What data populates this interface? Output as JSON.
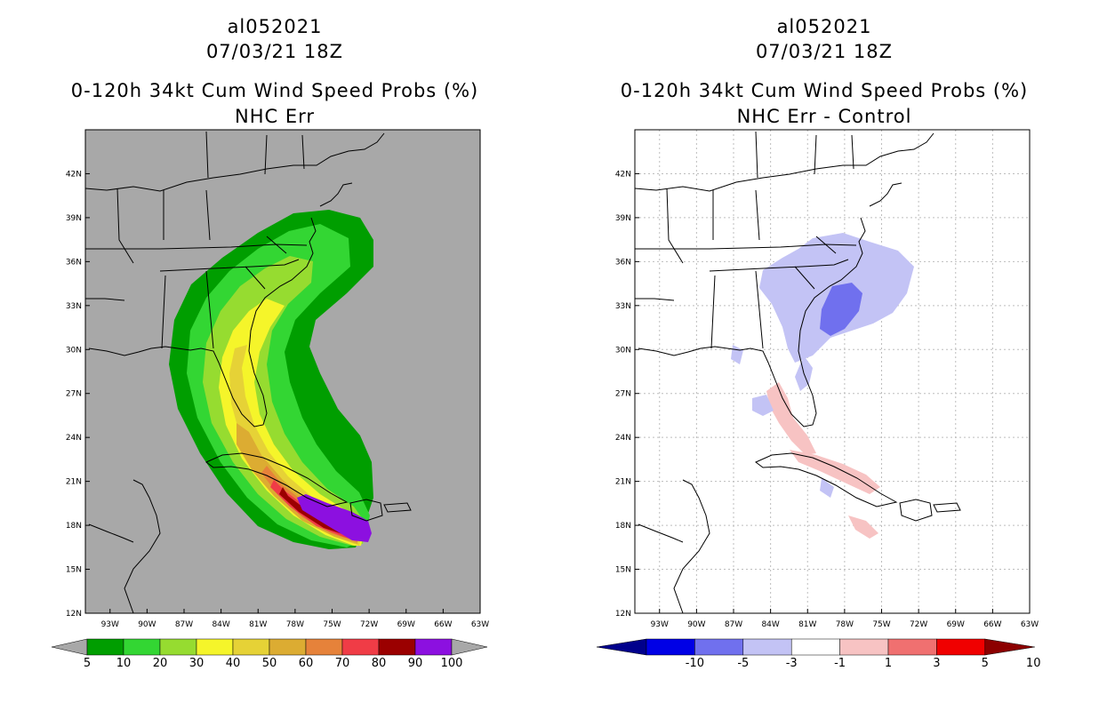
{
  "chart_data": [
    {
      "type": "heatmap",
      "storm_id": "al052021",
      "datetime": "07/03/21 18Z",
      "title": "0-120h 34kt Cum Wind Speed Probs (%)",
      "subtitle": "NHC Err",
      "lon_ticks": [
        "93W",
        "90W",
        "87W",
        "84W",
        "81W",
        "78W",
        "75W",
        "72W",
        "69W",
        "66W",
        "63W"
      ],
      "lat_ticks": [
        "42N",
        "39N",
        "36N",
        "33N",
        "30N",
        "27N",
        "24N",
        "21N",
        "18N",
        "15N",
        "12N"
      ],
      "xlim": [
        -95,
        -63
      ],
      "ylim": [
        12,
        45
      ],
      "background": "#a8a8a8",
      "colorbar": {
        "labels": [
          "5",
          "10",
          "20",
          "30",
          "40",
          "50",
          "60",
          "70",
          "80",
          "90",
          "100"
        ],
        "colors": [
          "#009e00",
          "#33d633",
          "#96dc30",
          "#f5f52a",
          "#e6d236",
          "#dcac32",
          "#e6823a",
          "#f03c46",
          "#9b0000",
          "#8c10e0"
        ],
        "under_color": "#a8a8a8",
        "over_color": "#a8a8a8"
      }
    },
    {
      "type": "heatmap",
      "storm_id": "al052021",
      "datetime": "07/03/21 18Z",
      "title": "0-120h 34kt Cum Wind Speed Probs (%)",
      "subtitle": "NHC Err - Control",
      "lon_ticks": [
        "93W",
        "90W",
        "87W",
        "84W",
        "81W",
        "78W",
        "75W",
        "72W",
        "69W",
        "66W",
        "63W"
      ],
      "lat_ticks": [
        "42N",
        "39N",
        "36N",
        "33N",
        "30N",
        "27N",
        "24N",
        "21N",
        "18N",
        "15N",
        "12N"
      ],
      "xlim": [
        -95,
        -63
      ],
      "ylim": [
        12,
        45
      ],
      "background": "#ffffff",
      "colorbar": {
        "labels": [
          "-10",
          "-5",
          "-3",
          "-1",
          "1",
          "3",
          "5",
          "10"
        ],
        "colors": [
          "#0000e6",
          "#7070ee",
          "#c3c3f5",
          "#ffffff",
          "#f7c3c3",
          "#f07070",
          "#f00000"
        ],
        "under_color": "#00008c",
        "over_color": "#8c0000"
      }
    }
  ]
}
